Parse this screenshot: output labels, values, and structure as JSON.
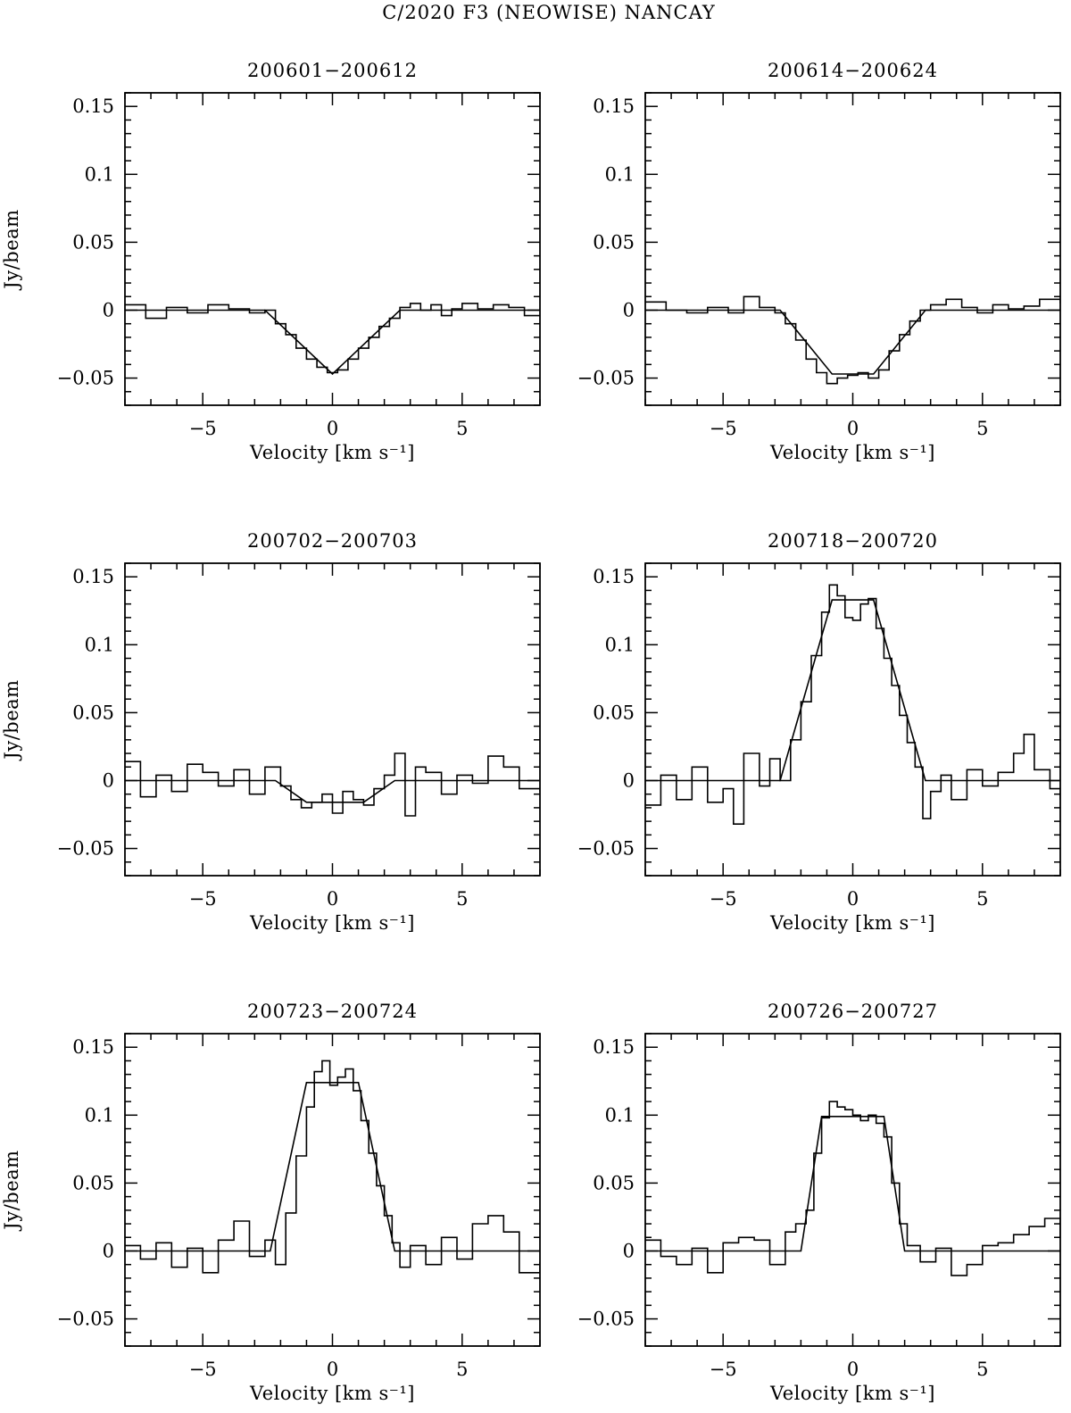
{
  "figure": {
    "title": "C/2020 F3 (NEOWISE)   NANCAY"
  },
  "chart_data": [
    {
      "type": "line",
      "title": "200601−200612",
      "xlabel": "Velocity [km s⁻¹]",
      "ylabel": "Jy/beam",
      "xlim": [
        -8,
        8
      ],
      "ylim": [
        -0.07,
        0.16
      ],
      "xticks": [
        -5,
        0,
        5
      ],
      "xtick_labels": [
        "−5",
        "0",
        "5"
      ],
      "yticks": [
        -0.05,
        0,
        0.05,
        0.1,
        0.15
      ],
      "ytick_labels": [
        "−0.05",
        "0",
        "0.05",
        "0.1",
        "0.15"
      ],
      "series": [
        {
          "style": "step",
          "x": [
            -8.0,
            -7.2,
            -6.4,
            -5.6,
            -4.8,
            -4.0,
            -3.2,
            -2.6,
            -2.2,
            -1.8,
            -1.4,
            -1.0,
            -0.6,
            -0.2,
            0.2,
            0.6,
            1.0,
            1.4,
            1.8,
            2.2,
            2.6,
            3.0,
            3.4,
            3.8,
            4.2,
            4.6,
            5.0,
            5.6,
            6.2,
            6.8,
            7.4,
            8.0
          ],
          "y": [
            0.004,
            -0.006,
            0.002,
            -0.002,
            0.004,
            0.001,
            -0.002,
            0.0,
            -0.01,
            -0.018,
            -0.028,
            -0.036,
            -0.042,
            -0.046,
            -0.044,
            -0.036,
            -0.028,
            -0.02,
            -0.012,
            -0.006,
            0.002,
            0.005,
            0.0,
            0.004,
            -0.004,
            0.001,
            0.005,
            0.001,
            0.004,
            0.002,
            -0.004,
            -0.004
          ]
        },
        {
          "style": "model",
          "x": [
            -8.0,
            -2.6,
            0.0,
            2.6,
            8.0
          ],
          "y": [
            0.0,
            0.0,
            -0.047,
            0.0,
            0.0
          ]
        }
      ]
    },
    {
      "type": "line",
      "title": "200614−200624",
      "xlabel": "Velocity [km s⁻¹]",
      "ylabel": "",
      "xlim": [
        -8,
        8
      ],
      "ylim": [
        -0.07,
        0.16
      ],
      "xticks": [
        -5,
        0,
        5
      ],
      "xtick_labels": [
        "−5",
        "0",
        "5"
      ],
      "yticks": [
        -0.05,
        0,
        0.05,
        0.1,
        0.15
      ],
      "ytick_labels": [
        "−0.05",
        "0",
        "0.05",
        "0.1",
        "0.15"
      ],
      "series": [
        {
          "style": "step",
          "x": [
            -8.0,
            -7.2,
            -6.4,
            -5.6,
            -4.8,
            -4.2,
            -3.6,
            -3.0,
            -2.6,
            -2.2,
            -1.8,
            -1.4,
            -1.0,
            -0.6,
            -0.2,
            0.2,
            0.6,
            1.0,
            1.4,
            1.8,
            2.2,
            2.6,
            3.0,
            3.6,
            4.2,
            4.8,
            5.4,
            6.0,
            6.6,
            7.2,
            8.0
          ],
          "y": [
            0.006,
            0.0,
            -0.002,
            0.002,
            -0.002,
            0.01,
            0.002,
            -0.002,
            -0.01,
            -0.022,
            -0.036,
            -0.046,
            -0.054,
            -0.05,
            -0.048,
            -0.046,
            -0.05,
            -0.044,
            -0.03,
            -0.018,
            -0.008,
            0.0,
            0.004,
            0.008,
            0.002,
            -0.002,
            0.004,
            0.001,
            0.003,
            0.008,
            0.005
          ]
        },
        {
          "style": "model",
          "x": [
            -8.0,
            -2.8,
            -0.8,
            0.8,
            2.8,
            8.0
          ],
          "y": [
            0.0,
            0.0,
            -0.047,
            -0.047,
            0.0,
            0.0
          ]
        }
      ]
    },
    {
      "type": "line",
      "title": "200702−200703",
      "xlabel": "Velocity [km s⁻¹]",
      "ylabel": "Jy/beam",
      "xlim": [
        -8,
        8
      ],
      "ylim": [
        -0.07,
        0.16
      ],
      "xticks": [
        -5,
        0,
        5
      ],
      "xtick_labels": [
        "−5",
        "0",
        "5"
      ],
      "yticks": [
        -0.05,
        0,
        0.05,
        0.1,
        0.15
      ],
      "ytick_labels": [
        "−0.05",
        "0",
        "0.05",
        "0.1",
        "0.15"
      ],
      "series": [
        {
          "style": "step",
          "x": [
            -8.0,
            -7.4,
            -6.8,
            -6.2,
            -5.6,
            -5.0,
            -4.4,
            -3.8,
            -3.2,
            -2.6,
            -2.0,
            -1.6,
            -1.2,
            -0.8,
            -0.4,
            0.0,
            0.4,
            0.8,
            1.2,
            1.6,
            2.0,
            2.4,
            2.8,
            3.2,
            3.6,
            4.2,
            4.8,
            5.4,
            6.0,
            6.6,
            7.2,
            8.0
          ],
          "y": [
            0.014,
            -0.012,
            0.004,
            -0.008,
            0.012,
            0.006,
            -0.004,
            0.008,
            -0.01,
            0.01,
            -0.004,
            -0.014,
            -0.02,
            -0.016,
            -0.01,
            -0.024,
            -0.008,
            -0.014,
            -0.018,
            -0.006,
            0.004,
            0.02,
            -0.026,
            0.01,
            0.006,
            -0.01,
            0.004,
            -0.002,
            0.018,
            0.01,
            -0.006,
            -0.008
          ]
        },
        {
          "style": "model",
          "x": [
            -8.0,
            -2.2,
            -1.0,
            1.2,
            2.4,
            8.0
          ],
          "y": [
            0.0,
            0.0,
            -0.016,
            -0.016,
            0.0,
            0.0
          ]
        }
      ]
    },
    {
      "type": "line",
      "title": "200718−200720",
      "xlabel": "Velocity [km s⁻¹]",
      "ylabel": "",
      "xlim": [
        -8,
        8
      ],
      "ylim": [
        -0.07,
        0.16
      ],
      "xticks": [
        -5,
        0,
        5
      ],
      "xtick_labels": [
        "−5",
        "0",
        "5"
      ],
      "yticks": [
        -0.05,
        0,
        0.05,
        0.1,
        0.15
      ],
      "ytick_labels": [
        "−0.05",
        "0",
        "0.05",
        "0.1",
        "0.15"
      ],
      "series": [
        {
          "style": "step",
          "x": [
            -8.0,
            -7.4,
            -6.8,
            -6.2,
            -5.6,
            -5.0,
            -4.6,
            -4.2,
            -3.6,
            -3.2,
            -2.8,
            -2.4,
            -2.0,
            -1.6,
            -1.2,
            -0.9,
            -0.6,
            -0.3,
            0.0,
            0.3,
            0.6,
            0.9,
            1.2,
            1.5,
            1.8,
            2.1,
            2.4,
            2.7,
            3.0,
            3.4,
            3.8,
            4.4,
            5.0,
            5.6,
            6.2,
            6.6,
            7.0,
            7.6,
            8.0
          ],
          "y": [
            -0.018,
            0.004,
            -0.014,
            0.01,
            -0.016,
            -0.006,
            -0.032,
            0.02,
            -0.004,
            0.016,
            0.0,
            0.03,
            0.058,
            0.092,
            0.124,
            0.144,
            0.136,
            0.12,
            0.118,
            0.13,
            0.134,
            0.112,
            0.09,
            0.07,
            0.048,
            0.028,
            0.01,
            -0.028,
            -0.008,
            0.004,
            -0.014,
            0.008,
            -0.004,
            0.006,
            0.02,
            0.034,
            0.008,
            -0.006,
            -0.014
          ]
        },
        {
          "style": "model",
          "x": [
            -8.0,
            -2.8,
            -0.8,
            0.8,
            2.8,
            8.0
          ],
          "y": [
            0.0,
            0.0,
            0.133,
            0.133,
            0.0,
            0.0
          ]
        }
      ]
    },
    {
      "type": "line",
      "title": "200723−200724",
      "xlabel": "Velocity [km s⁻¹]",
      "ylabel": "Jy/beam",
      "xlim": [
        -8,
        8
      ],
      "ylim": [
        -0.07,
        0.16
      ],
      "xticks": [
        -5,
        0,
        5
      ],
      "xtick_labels": [
        "−5",
        "0",
        "5"
      ],
      "yticks": [
        -0.05,
        0,
        0.05,
        0.1,
        0.15
      ],
      "ytick_labels": [
        "−0.05",
        "0",
        "0.05",
        "0.1",
        "0.15"
      ],
      "series": [
        {
          "style": "step",
          "x": [
            -8.0,
            -7.4,
            -6.8,
            -6.2,
            -5.6,
            -5.0,
            -4.4,
            -3.8,
            -3.2,
            -2.6,
            -2.2,
            -1.8,
            -1.4,
            -1.0,
            -0.7,
            -0.4,
            -0.1,
            0.2,
            0.5,
            0.8,
            1.1,
            1.4,
            1.7,
            2.0,
            2.3,
            2.6,
            3.0,
            3.6,
            4.2,
            4.8,
            5.4,
            6.0,
            6.6,
            7.2,
            8.0
          ],
          "y": [
            0.004,
            -0.006,
            0.006,
            -0.012,
            0.002,
            -0.016,
            0.008,
            0.022,
            -0.004,
            0.008,
            -0.01,
            0.028,
            0.07,
            0.106,
            0.132,
            0.14,
            0.122,
            0.128,
            0.134,
            0.118,
            0.096,
            0.072,
            0.048,
            0.026,
            0.006,
            -0.012,
            0.004,
            -0.01,
            0.01,
            -0.006,
            0.02,
            0.026,
            0.014,
            -0.016,
            -0.008
          ]
        },
        {
          "style": "model",
          "x": [
            -8.0,
            -2.4,
            -1.0,
            1.0,
            2.4,
            8.0
          ],
          "y": [
            0.0,
            0.0,
            0.124,
            0.124,
            0.0,
            0.0
          ]
        }
      ]
    },
    {
      "type": "line",
      "title": "200726−200727",
      "xlabel": "Velocity [km s⁻¹]",
      "ylabel": "",
      "xlim": [
        -8,
        8
      ],
      "ylim": [
        -0.07,
        0.16
      ],
      "xticks": [
        -5,
        0,
        5
      ],
      "xtick_labels": [
        "−5",
        "0",
        "5"
      ],
      "yticks": [
        -0.05,
        0,
        0.05,
        0.1,
        0.15
      ],
      "ytick_labels": [
        "−0.05",
        "0",
        "0.05",
        "0.1",
        "0.15"
      ],
      "series": [
        {
          "style": "step",
          "x": [
            -8.0,
            -7.4,
            -6.8,
            -6.2,
            -5.6,
            -5.0,
            -4.4,
            -3.8,
            -3.2,
            -2.6,
            -2.2,
            -1.8,
            -1.5,
            -1.2,
            -0.9,
            -0.6,
            -0.3,
            0.0,
            0.3,
            0.6,
            0.9,
            1.2,
            1.5,
            1.8,
            2.1,
            2.6,
            3.2,
            3.8,
            4.4,
            5.0,
            5.6,
            6.2,
            6.8,
            7.4,
            8.0
          ],
          "y": [
            0.008,
            -0.004,
            -0.01,
            0.002,
            -0.016,
            0.006,
            0.01,
            0.008,
            -0.01,
            0.014,
            0.02,
            0.03,
            0.072,
            0.098,
            0.11,
            0.106,
            0.104,
            0.1,
            0.096,
            0.1,
            0.094,
            0.084,
            0.05,
            0.02,
            0.004,
            -0.008,
            0.002,
            -0.018,
            -0.01,
            0.004,
            0.006,
            0.012,
            0.018,
            0.024,
            0.01
          ]
        },
        {
          "style": "model",
          "x": [
            -8.0,
            -2.0,
            -1.2,
            1.2,
            2.0,
            8.0
          ],
          "y": [
            0.0,
            0.0,
            0.099,
            0.099,
            0.0,
            0.0
          ]
        }
      ]
    }
  ]
}
